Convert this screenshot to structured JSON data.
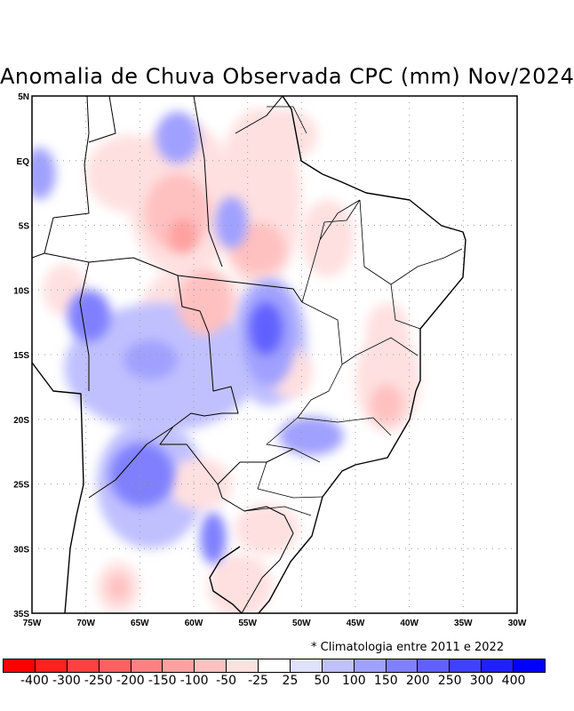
{
  "title": "Anomalia de Chuva Observada CPC (mm) Nov/2024",
  "note": "* Climatologia entre 2011 e 2022",
  "chart_data": {
    "type": "heatmap",
    "title": "Anomalia de Chuva Observada CPC (mm) Nov/2024",
    "xlim": [
      -75,
      -30
    ],
    "ylim": [
      -35,
      5
    ],
    "x_ticks": [
      "75W",
      "70W",
      "65W",
      "60W",
      "55W",
      "50W",
      "45W",
      "40W",
      "35W",
      "30W"
    ],
    "y_ticks": [
      "5N",
      "EQ",
      "5S",
      "10S",
      "15S",
      "20S",
      "25S",
      "30S",
      "35S"
    ],
    "grid": true,
    "colorbar": {
      "labels": [
        "-400",
        "-300",
        "-250",
        "-200",
        "-150",
        "-100",
        "-50",
        "-25",
        "25",
        "50",
        "100",
        "150",
        "200",
        "250",
        "300",
        "400"
      ],
      "colors": [
        "#ff0000",
        "#ff2020",
        "#ff4040",
        "#ff6060",
        "#ff8080",
        "#ffa0a0",
        "#ffc0c0",
        "#ffe0e0",
        "#ffffff",
        "#e0e0ff",
        "#c0c0ff",
        "#a0a0ff",
        "#8080ff",
        "#6060ff",
        "#4040ff",
        "#2020ff",
        "#0000ff"
      ]
    },
    "anomaly_regions": [
      {
        "lon": -61,
        "lat": -3,
        "slon": 5,
        "slat": 6,
        "value": -50
      },
      {
        "lon": -54,
        "lat": -3,
        "slon": 4,
        "slat": 7,
        "value": -50
      },
      {
        "lon": -66,
        "lat": -1,
        "slon": 4,
        "slat": 3,
        "value": -50
      },
      {
        "lon": -60,
        "lat": -12,
        "slon": 5,
        "slat": 4,
        "value": -50
      },
      {
        "lon": -63,
        "lat": -16,
        "slon": 9,
        "slat": 5,
        "value": 50
      },
      {
        "lon": -64,
        "lat": -25,
        "slon": 5,
        "slat": 5,
        "value": 50
      },
      {
        "lon": -53,
        "lat": -14,
        "slon": 3.5,
        "slat": 5,
        "value": 50
      },
      {
        "lon": -42,
        "lat": -17,
        "slon": 3,
        "slat": 4,
        "value": -50
      },
      {
        "lon": -42,
        "lat": -13,
        "slon": 2,
        "slat": 2,
        "value": -50
      },
      {
        "lon": -47.6,
        "lat": -6,
        "slon": 2.5,
        "slat": 3,
        "value": -50
      },
      {
        "lon": -59.4,
        "lat": -25,
        "slon": 3,
        "slat": 2,
        "value": -50
      },
      {
        "lon": -53.2,
        "lat": -28.5,
        "slon": 3,
        "slat": 2,
        "value": -50
      },
      {
        "lon": -55.7,
        "lat": -32.9,
        "slon": 3,
        "slat": 2.5,
        "value": -50
      },
      {
        "lon": -51.5,
        "lat": 2,
        "slon": 3,
        "slat": 2,
        "value": -50
      },
      {
        "lon": -51,
        "lat": -16.4,
        "slon": 2,
        "slat": 2,
        "value": -50
      },
      {
        "lon": -67,
        "lat": -33,
        "slon": 2,
        "slat": 2,
        "value": -50
      },
      {
        "lon": -72,
        "lat": -10,
        "slon": 2,
        "slat": 2,
        "value": -50
      },
      {
        "lon": -61.5,
        "lat": -4,
        "slon": 3,
        "slat": 3,
        "value": -100
      },
      {
        "lon": -61,
        "lat": -5.8,
        "slon": 1.3,
        "slat": 1.3,
        "value": -150
      },
      {
        "lon": -54,
        "lat": -6.8,
        "slon": 2.5,
        "slat": 2,
        "value": -100
      },
      {
        "lon": -59,
        "lat": -11,
        "slon": 2.5,
        "slat": 2.5,
        "value": -100
      },
      {
        "lon": -42.1,
        "lat": -18.8,
        "slon": 1.5,
        "slat": 1.5,
        "value": -100
      },
      {
        "lon": -67,
        "lat": -33,
        "slon": 1,
        "slat": 1,
        "value": -100
      },
      {
        "lon": -61.5,
        "lat": 1.8,
        "slon": 2,
        "slat": 2,
        "value": 100
      },
      {
        "lon": -74.3,
        "lat": -1,
        "slon": 1.5,
        "slat": 2,
        "value": 100
      },
      {
        "lon": -56.5,
        "lat": -4.8,
        "slon": 1.5,
        "slat": 2,
        "value": 100
      },
      {
        "lon": -53,
        "lat": -13.5,
        "slon": 2.5,
        "slat": 4,
        "value": 100
      },
      {
        "lon": -53.3,
        "lat": -13,
        "slon": 1.5,
        "slat": 2,
        "value": 200
      },
      {
        "lon": -69.7,
        "lat": -12,
        "slon": 2,
        "slat": 2,
        "value": 150
      },
      {
        "lon": -64,
        "lat": -15.4,
        "slon": 2.5,
        "slat": 1.5,
        "value": 100
      },
      {
        "lon": -64.8,
        "lat": -24.3,
        "slon": 3,
        "slat": 2.5,
        "value": 150
      },
      {
        "lon": -58.2,
        "lat": -29.2,
        "slon": 1.2,
        "slat": 2,
        "value": 150
      },
      {
        "lon": -49.1,
        "lat": -21.3,
        "slon": 3,
        "slat": 1.5,
        "value": 100
      }
    ]
  }
}
